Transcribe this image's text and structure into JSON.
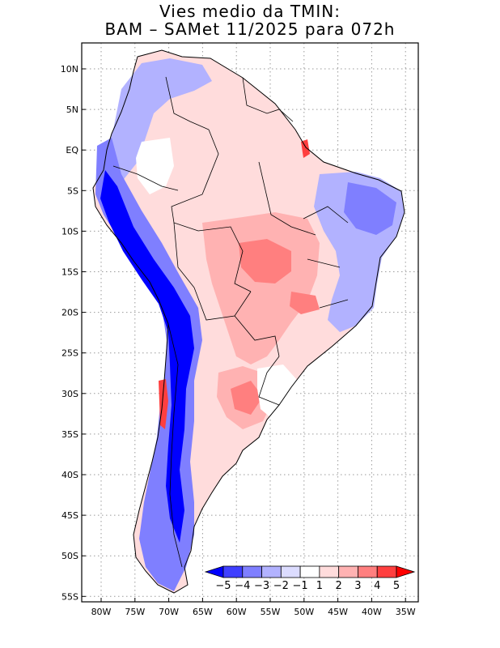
{
  "title": {
    "line1": "Vies medio da TMIN:",
    "line2": "BAM – SAMet 11/2025  para 072h"
  },
  "axes": {
    "lat_labels": [
      "10N",
      "5N",
      "EQ",
      "5S",
      "10S",
      "15S",
      "20S",
      "25S",
      "30S",
      "35S",
      "40S",
      "45S",
      "50S",
      "55S"
    ],
    "lon_labels": [
      "80W",
      "75W",
      "70W",
      "65W",
      "60W",
      "55W",
      "50W",
      "45W",
      "40W",
      "35W"
    ]
  },
  "colorbar": {
    "levels": [
      "−5",
      "−4",
      "−3",
      "−2",
      "−1",
      "1",
      "2",
      "3",
      "4",
      "5"
    ],
    "colors": [
      "#0000ff",
      "#3f3fff",
      "#7f7fff",
      "#b2b2ff",
      "#dcdcff",
      "#ffffff",
      "#ffdcdc",
      "#ffb2b2",
      "#ff7f7f",
      "#ff3f3f",
      "#ff0000"
    ]
  }
}
